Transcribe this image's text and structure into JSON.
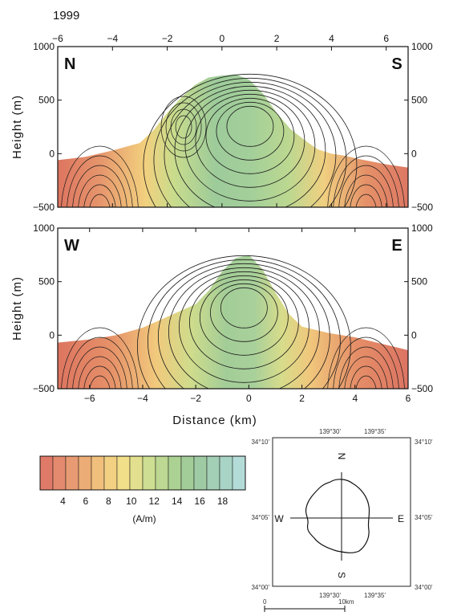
{
  "chart_data": [
    {
      "type": "heatmap",
      "title": "1999",
      "panel": "N-S section",
      "start_label": "N",
      "end_label": "S",
      "ylabel": "Height (m)",
      "xlim": [
        -6,
        6.8
      ],
      "ylim": [
        -500,
        1000
      ],
      "x_ticks": [
        -6,
        -4,
        -2,
        0,
        2,
        4,
        6
      ],
      "y_ticks": [
        -500,
        0,
        500,
        1000
      ],
      "grid": false,
      "surface_x": [
        -6,
        -5,
        -4,
        -3,
        -2.5,
        -2,
        -1.5,
        -1,
        -0.5,
        0,
        0.5,
        1,
        1.5,
        2,
        2.5,
        3,
        3.5,
        4,
        4.5,
        5,
        6,
        6.8
      ],
      "surface_y": [
        -60,
        -30,
        30,
        100,
        220,
        380,
        520,
        640,
        710,
        730,
        740,
        690,
        560,
        380,
        230,
        130,
        40,
        0,
        -20,
        -50,
        -100,
        -130
      ]
    },
    {
      "type": "heatmap",
      "panel": "W-E section",
      "start_label": "W",
      "end_label": "E",
      "xlabel": "Distance (km)",
      "ylabel": "Height (m)",
      "xlim": [
        -7.2,
        6
      ],
      "ylim": [
        -500,
        1000
      ],
      "x_ticks": [
        -6,
        -4,
        -2,
        0,
        2,
        4,
        6
      ],
      "y_ticks": [
        -500,
        0,
        500,
        1000
      ],
      "grid": false,
      "surface_x": [
        -7.2,
        -6,
        -5,
        -4,
        -3,
        -2,
        -1.5,
        -1,
        -0.5,
        0,
        0.5,
        1,
        1.5,
        2,
        3,
        4,
        5,
        6
      ],
      "surface_y": [
        -70,
        -40,
        0,
        70,
        180,
        290,
        420,
        600,
        720,
        750,
        620,
        400,
        200,
        80,
        20,
        -20,
        -80,
        -140
      ]
    }
  ],
  "colorbar": {
    "label": "(A/m)",
    "min": 2,
    "max": 20,
    "ticks": [
      4,
      6,
      8,
      10,
      12,
      14,
      16,
      18
    ],
    "colors": [
      "#e07a68",
      "#e48a6e",
      "#e89b72",
      "#ecac76",
      "#f0bf7c",
      "#f3d183",
      "#f2df8a",
      "#e2e08e",
      "#cede92",
      "#bcd892",
      "#acd293",
      "#a2cd98",
      "#9fcba4",
      "#a2cfb5",
      "#a8d4c6",
      "#b3dcd8"
    ]
  },
  "location_map": {
    "top_labels": [
      "139°30'",
      "139°35'"
    ],
    "bottom_labels": [
      "139°30'",
      "139°35'"
    ],
    "left_labels": [
      "34°10'",
      "34°05'",
      "34°00'"
    ],
    "right_labels": [
      "34°10'",
      "34°05'",
      "34°00'"
    ],
    "directions": {
      "north": "N",
      "south": "S",
      "west": "W",
      "east": "E"
    },
    "scale_start": "0",
    "scale_end": "10km"
  }
}
